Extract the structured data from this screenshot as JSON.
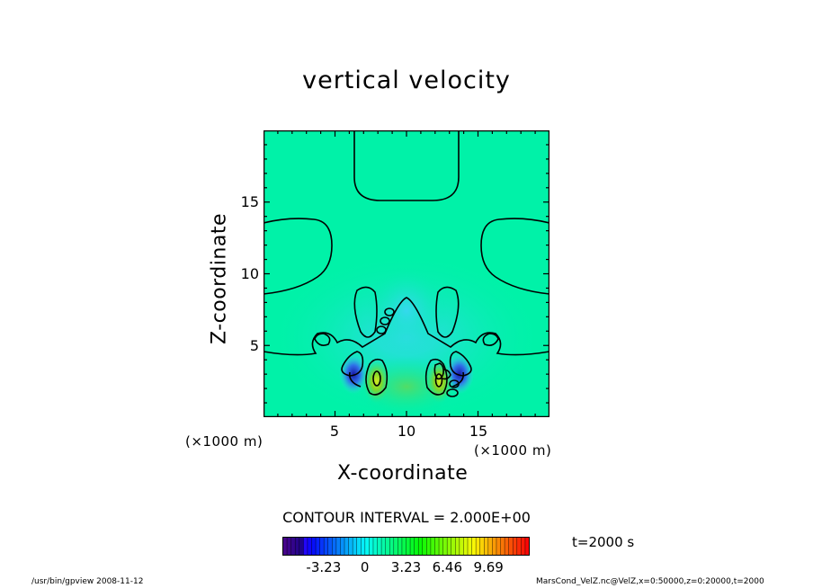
{
  "chart_data": {
    "type": "heatmap",
    "title": "vertical velocity",
    "xlabel": "X-coordinate",
    "ylabel": "Z-coordinate",
    "x_unit_label": "(×1000 m)",
    "y_unit_label": "(×1000 m)",
    "xlim": [
      0,
      20
    ],
    "ylim": [
      0,
      20
    ],
    "x_ticks": [
      "5",
      "10",
      "15"
    ],
    "y_ticks": [
      "5",
      "10",
      "15"
    ],
    "contour_interval_text": "CONTOUR INTERVAL = 2.000E+00",
    "time_text": "t=2000 s",
    "colorbar": {
      "min": -6.46,
      "max": 12.92,
      "tick_labels": [
        "-3.23",
        "0",
        "3.23",
        "6.46",
        "9.69"
      ],
      "tick_values": [
        -3.23,
        0,
        3.23,
        6.46,
        9.69
      ]
    },
    "features": [
      {
        "name": "downdraft",
        "x": 6.3,
        "z": 3.0,
        "value": -5.5
      },
      {
        "name": "downdraft",
        "x": 13.7,
        "z": 3.0,
        "value": -5.5
      },
      {
        "name": "updraft",
        "x": 7.9,
        "z": 2.5,
        "value": 6.0
      },
      {
        "name": "updraft",
        "x": 12.3,
        "z": 2.5,
        "value": 6.0
      }
    ]
  },
  "footer": {
    "left": "/usr/bin/gpview  2008-11-12",
    "right": "MarsCond_VelZ.nc@VelZ,x=0:50000,z=0:20000,t=2000"
  }
}
